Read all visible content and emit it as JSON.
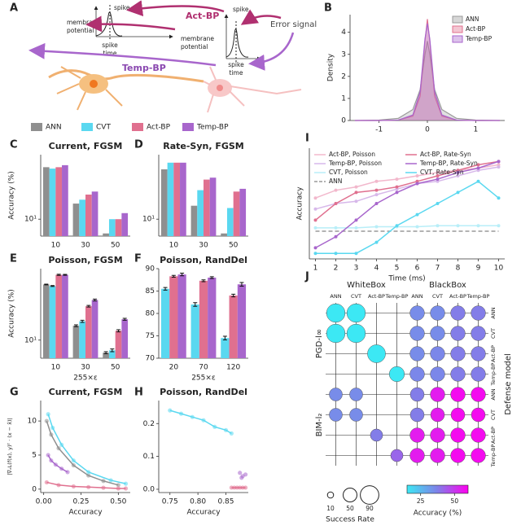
{
  "diagram": {
    "panel": "A",
    "spike_left": "spike",
    "membrane_left_1": "membrane",
    "membrane_left_2": "potential",
    "spike_time_left_1": "spike",
    "spike_time_left_2": "time",
    "act_bp": "Act-BP",
    "error_signal": "Error signal",
    "membrane_right_1": "membrane",
    "membrane_right_2": "potential",
    "spike_right": "spike",
    "spike_time_right_1": "spike",
    "spike_time_right_2": "time",
    "temp_bp": "Temp-BP"
  },
  "chart_data": [
    {
      "type": "density",
      "panel": "B",
      "ylabel": "Density",
      "xlim": [
        -1.6,
        1.6
      ],
      "xticks": [
        -1,
        0,
        1
      ],
      "ylim": [
        0,
        4.8
      ],
      "yticks": [
        0,
        1,
        2,
        3,
        4
      ],
      "legend": "upper right",
      "x": [
        -1.5,
        -1,
        -0.6,
        -0.3,
        -0.15,
        -0.05,
        0,
        0.05,
        0.15,
        0.3,
        0.6,
        1,
        1.5
      ],
      "series": [
        {
          "name": "ANN",
          "color": "#9a9a9a",
          "values": [
            0,
            0.02,
            0.1,
            0.5,
            1.4,
            3.0,
            3.6,
            3.0,
            1.4,
            0.5,
            0.1,
            0.02,
            0
          ]
        },
        {
          "name": "Act-BP",
          "color": "#e0708f",
          "values": [
            0,
            0,
            0.02,
            0.2,
            1.1,
            3.6,
            4.6,
            3.6,
            1.1,
            0.2,
            0.02,
            0,
            0
          ]
        },
        {
          "name": "Temp-BP",
          "color": "#a866cc",
          "values": [
            0,
            0,
            0.02,
            0.25,
            1.3,
            3.7,
            4.4,
            3.7,
            1.3,
            0.25,
            0.02,
            0,
            0
          ]
        }
      ]
    },
    {
      "type": "bar",
      "panel": "C",
      "title": "Current, FGSM",
      "ylabel": "Accuracy (%)",
      "log_y": true,
      "ylim": [
        6,
        70
      ],
      "yticks": [
        {
          "value": 10,
          "label": "10¹"
        }
      ],
      "legend": "top",
      "categories": [
        "10",
        "30",
        "50"
      ],
      "series": [
        {
          "name": "ANN",
          "color": "#8f8f8f",
          "values": [
            48,
            16,
            6.5
          ]
        },
        {
          "name": "CVT",
          "color": "#5ad8f0",
          "values": [
            46,
            18,
            10
          ]
        },
        {
          "name": "Act-BP",
          "color": "#e0708f",
          "values": [
            48,
            21,
            10
          ]
        },
        {
          "name": "Temp-BP",
          "color": "#a866cc",
          "values": [
            51,
            23,
            12
          ]
        }
      ]
    },
    {
      "type": "bar",
      "panel": "D",
      "title": "Rate-Syn, FGSM",
      "log_y": true,
      "ylim": [
        6,
        70
      ],
      "yticks": [
        {
          "value": 10,
          "label": "10¹"
        }
      ],
      "categories": [
        "10",
        "30",
        "50"
      ],
      "series": [
        {
          "name": "ANN",
          "color": "#8f8f8f",
          "values": [
            45,
            15,
            6.5
          ]
        },
        {
          "name": "CVT",
          "color": "#5ad8f0",
          "values": [
            55,
            24,
            14
          ]
        },
        {
          "name": "Act-BP",
          "color": "#e0708f",
          "values": [
            55,
            33,
            23
          ]
        },
        {
          "name": "Temp-BP",
          "color": "#a866cc",
          "values": [
            55,
            35,
            25
          ]
        }
      ]
    },
    {
      "type": "bar",
      "panel": "E",
      "title": "Poisson, FGSM",
      "ylabel": "Accuracy (%)",
      "xlabel": "255×ε",
      "log_y": true,
      "ylim": [
        6,
        75
      ],
      "yticks": [
        {
          "value": 10,
          "label": "10¹"
        }
      ],
      "categories": [
        "10",
        "30",
        "50"
      ],
      "series": [
        {
          "name": "ANN",
          "color": "#8f8f8f",
          "values": [
            48,
            15,
            7
          ],
          "errors": [
            0.5,
            0.4,
            0.2
          ]
        },
        {
          "name": "CVT",
          "color": "#5ad8f0",
          "values": [
            46,
            17,
            7.5
          ],
          "errors": [
            0.6,
            0.5,
            0.3
          ]
        },
        {
          "name": "Act-BP",
          "color": "#e0708f",
          "values": [
            63,
            26,
            13
          ],
          "errors": [
            1,
            0.6,
            0.4
          ]
        },
        {
          "name": "Temp-BP",
          "color": "#a866cc",
          "values": [
            63,
            31,
            18
          ],
          "errors": [
            0.8,
            0.8,
            0.5
          ]
        }
      ]
    },
    {
      "type": "bar",
      "panel": "F",
      "title": "Poisson, RandDel",
      "xlabel": "255×ε",
      "ylim": [
        70,
        90
      ],
      "yticks": [
        70,
        75,
        80,
        85,
        90
      ],
      "categories": [
        "20",
        "70",
        "120"
      ],
      "series": [
        {
          "name": "CVT",
          "color": "#5ad8f0",
          "values": [
            85.5,
            82,
            74.5
          ],
          "errors": [
            0.3,
            0.4,
            0.4
          ]
        },
        {
          "name": "Act-BP",
          "color": "#e0708f",
          "values": [
            88.3,
            87.3,
            84
          ],
          "errors": [
            0.2,
            0.2,
            0.3
          ]
        },
        {
          "name": "Temp-BP",
          "color": "#a866cc",
          "values": [
            88.7,
            88,
            86.5
          ],
          "errors": [
            0.3,
            0.2,
            0.4
          ]
        }
      ]
    },
    {
      "type": "scatter",
      "panel": "G",
      "title": "Current, FGSM",
      "xlabel": "Accuracy",
      "ylabel": "|∇ₓL(f(x), y)ᵀ · (x − x̂)|",
      "xlim": [
        -0.02,
        0.58
      ],
      "xticks": [
        {
          "value": 0,
          "label": "0.00"
        },
        {
          "value": 0.25,
          "label": "0.25"
        },
        {
          "value": 0.5,
          "label": "0.50"
        }
      ],
      "ylim": [
        -0.5,
        13
      ],
      "yticks": [
        0,
        5,
        10
      ],
      "series": [
        {
          "name": "ANN",
          "color": "#8f8f8f",
          "fit": true,
          "x": [
            0.02,
            0.05,
            0.1,
            0.2,
            0.3,
            0.4,
            0.5
          ],
          "values": [
            10,
            8,
            6,
            3.5,
            2,
            1.2,
            0.6
          ]
        },
        {
          "name": "CVT",
          "color": "#5ad8f0",
          "fit": true,
          "x": [
            0.03,
            0.06,
            0.12,
            0.2,
            0.3,
            0.45,
            0.55
          ],
          "values": [
            11,
            9,
            6.5,
            4.2,
            2.5,
            1.3,
            0.8
          ]
        },
        {
          "name": "Act-BP",
          "color": "#e0708f",
          "fit": true,
          "x": [
            0.02,
            0.1,
            0.2,
            0.3,
            0.4,
            0.5,
            0.55
          ],
          "values": [
            1,
            0.6,
            0.4,
            0.3,
            0.2,
            0.1,
            0.1
          ]
        },
        {
          "name": "Temp-BP",
          "color": "#a866cc",
          "fit": true,
          "x": [
            0.03,
            0.05,
            0.08,
            0.12,
            0.16
          ],
          "values": [
            5,
            4.2,
            3.6,
            3,
            2.5
          ]
        }
      ]
    },
    {
      "type": "scatter",
      "panel": "H",
      "title": "Poisson, RandDel",
      "xlabel": "Accuracy",
      "xlim": [
        0.73,
        0.89
      ],
      "xticks": [
        {
          "value": 0.75,
          "label": "0.75"
        },
        {
          "value": 0.8,
          "label": "0.80"
        },
        {
          "value": 0.85,
          "label": "0.85"
        }
      ],
      "ylim": [
        -0.01,
        0.27
      ],
      "yticks": [
        {
          "value": 0,
          "label": "0.0"
        },
        0.1,
        0.2
      ],
      "series": [
        {
          "name": "CVT",
          "color": "#5ad8f0",
          "fit": true,
          "x": [
            0.75,
            0.77,
            0.79,
            0.81,
            0.83,
            0.85,
            0.86
          ],
          "values": [
            0.24,
            0.23,
            0.22,
            0.21,
            0.19,
            0.18,
            0.17
          ]
        },
        {
          "name": "Act-BP",
          "color": "#e0708f",
          "fit": true,
          "x": [
            0.86,
            0.865,
            0.87,
            0.875,
            0.88,
            0.885
          ],
          "values": [
            0.005,
            0.005,
            0.005,
            0.005,
            0.005,
            0.005
          ]
        },
        {
          "name": "Temp-BP",
          "color": "#a866cc",
          "fit": false,
          "x": [
            0.875,
            0.878,
            0.88,
            0.885
          ],
          "values": [
            0.05,
            0.035,
            0.04,
            0.045
          ]
        }
      ]
    },
    {
      "type": "line",
      "panel": "I",
      "xlabel": "Time (ms)",
      "ylabel": "Accuracy",
      "xlim": [
        0.7,
        10.3
      ],
      "xticks": [
        1,
        2,
        3,
        4,
        5,
        6,
        7,
        8,
        9,
        10
      ],
      "ylim": [
        0,
        1
      ],
      "legend": "upper left",
      "x": [
        1,
        2,
        3,
        4,
        5,
        6,
        7,
        8,
        9,
        10
      ],
      "series": [
        {
          "name": "Act-BP, Poisson",
          "color": "#f2b8cc",
          "values": [
            0.55,
            0.62,
            0.65,
            0.7,
            0.72,
            0.75,
            0.78,
            0.8,
            0.82,
            0.85
          ]
        },
        {
          "name": "Temp-BP, Poisson",
          "color": "#d7b8ea",
          "values": [
            0.45,
            0.5,
            0.52,
            0.58,
            0.63,
            0.68,
            0.7,
            0.75,
            0.8,
            0.83
          ]
        },
        {
          "name": "CVT, Poisson",
          "color": "#b8eef8",
          "values": [
            0.28,
            0.28,
            0.28,
            0.29,
            0.29,
            0.29,
            0.3,
            0.3,
            0.3,
            0.3
          ]
        },
        {
          "name": "ANN",
          "color": "#9a9a9a",
          "dash": true,
          "values": [
            0.25,
            0.25,
            0.25,
            0.25,
            0.25,
            0.25,
            0.25,
            0.25,
            0.25,
            0.25
          ]
        },
        {
          "name": "Act-BP, Rate-Syn",
          "color": "#e0708f",
          "values": [
            0.35,
            0.5,
            0.6,
            0.62,
            0.65,
            0.7,
            0.75,
            0.8,
            0.85,
            0.88
          ]
        },
        {
          "name": "Temp-BP, Rate-Syn",
          "color": "#a866cc",
          "values": [
            0.1,
            0.2,
            0.35,
            0.5,
            0.6,
            0.68,
            0.72,
            0.78,
            0.82,
            0.88
          ]
        },
        {
          "name": "CVT, Rate-Syn",
          "color": "#5ad8f0",
          "values": [
            0.05,
            0.05,
            0.05,
            0.15,
            0.3,
            0.4,
            0.5,
            0.6,
            0.7,
            0.55
          ]
        }
      ]
    },
    {
      "type": "dotmatrix",
      "panel": "J",
      "ylabel": "Defense model",
      "column_groups": [
        "WhiteBox",
        "BlackBox"
      ],
      "columns": [
        "ANN",
        "CVT",
        "Act-BP",
        "Temp-BP",
        "ANN",
        "CVT",
        "Act-BP",
        "Temp-BP"
      ],
      "row_groups": [
        "PGD-l∞",
        "BIM-l₂"
      ],
      "rows": [
        "ANN",
        "CVT",
        "Act-BP",
        "Temp-BP",
        "ANN",
        "CVT",
        "Act-BP",
        "Temp-BP"
      ],
      "success_rate": [
        [
          90,
          90,
          null,
          null,
          55,
          55,
          55,
          55
        ],
        [
          90,
          90,
          null,
          null,
          55,
          55,
          55,
          55
        ],
        [
          null,
          null,
          85,
          null,
          55,
          55,
          55,
          55
        ],
        [
          null,
          null,
          null,
          60,
          55,
          55,
          55,
          55
        ],
        [
          45,
          45,
          null,
          null,
          50,
          55,
          55,
          55
        ],
        [
          45,
          45,
          null,
          null,
          50,
          50,
          50,
          50
        ],
        [
          null,
          null,
          40,
          null,
          55,
          55,
          55,
          55
        ],
        [
          null,
          null,
          null,
          40,
          55,
          55,
          55,
          55
        ]
      ],
      "accuracy": [
        [
          15,
          15,
          null,
          null,
          35,
          35,
          38,
          38
        ],
        [
          15,
          15,
          null,
          null,
          35,
          35,
          38,
          38
        ],
        [
          null,
          null,
          15,
          null,
          35,
          36,
          38,
          38
        ],
        [
          null,
          null,
          null,
          15,
          36,
          36,
          38,
          38
        ],
        [
          35,
          35,
          null,
          null,
          38,
          55,
          58,
          58
        ],
        [
          35,
          35,
          null,
          null,
          38,
          55,
          58,
          58
        ],
        [
          null,
          null,
          38,
          null,
          55,
          55,
          58,
          58
        ],
        [
          null,
          null,
          null,
          42,
          55,
          55,
          58,
          58
        ]
      ],
      "size_legend": {
        "title": "Success Rate",
        "values": [
          10,
          50,
          90
        ]
      },
      "colorbar": {
        "label": "Accuracy (%)",
        "lim": [
          15,
          60
        ],
        "ticks": [
          25,
          50
        ],
        "colors": [
          "#3ce8f4",
          "#8080e8",
          "#ff00f0"
        ]
      }
    }
  ]
}
